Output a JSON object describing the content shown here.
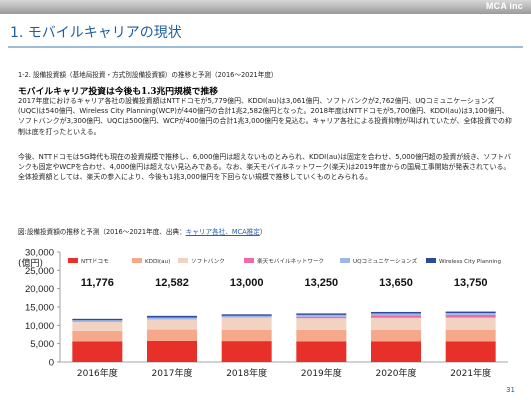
{
  "header": {
    "brand": "MCA inc"
  },
  "slide": {
    "title": "1. モバイルキャリアの現状",
    "subhead": "1-2. 設備投資額（基地局投資・方式別設備投資額）の推移と予測（2016～2021年度）",
    "section_heading": "モバイルキャリア投資は今後も1.3兆円規模で推移",
    "para1": "2017年度におけるキャリア各社の設備投資額はNTTドコモが5,779億円、KDDI(au)は3,061億円、ソフトバンクが2,762億円、UQコミュニケーションズ(UQC)は540億円、Wireless City Planning(WCP)が440億円の合計1兆2,582億円となった。2018年度はNTTドコモが5,700億円、KDDI(au)は3,100億円、ソフトバンクが3,300億円、UQCは500億円、WCPが400億円の合計1兆3,000億円を見込む。キャリア各社による投資抑制が叫ばれていたが、全体投資での抑制は底を打ったといえる。",
    "para2": "今後、NTTドコモは5G時代も現在の投資規模で推移し、6,000億円は超えないものとみられ、KDDI(au)は固定を合わせ、5,000億円超の投資が続き、ソフトバンクも固定やWCPを合わせ、4,000億円は超えない見込みである。なお、楽天モバイルネットワーク(楽天)は2019年度からの国局工事開始が発表されている。全体投資額としては、楽天の参入により、今後も1兆3,000億円を下回らない規模で推移していくものとみられる。",
    "chart_caption": "図:設備投資額の推移と予測（2016～2021年度、出典：",
    "chart_caption_source": "キャリア各社、MCA推定",
    "chart_caption_end": "）",
    "page_number": "31"
  },
  "chart_data": {
    "type": "bar",
    "stacked": true,
    "categories": [
      "2016年度",
      "2017年度",
      "2018年度",
      "2019年度",
      "2020年度",
      "2021年度"
    ],
    "totals": [
      "11,776",
      "12,582",
      "13,000",
      "13,250",
      "13,650",
      "13,750"
    ],
    "ylabel": "(億円)",
    "ylim": [
      0,
      30000
    ],
    "yticks": [
      "0",
      "5,000",
      "10,000",
      "15,000",
      "20,000",
      "25,000",
      "30,000"
    ],
    "grid": false,
    "legend_position": "top",
    "series": [
      {
        "name": "NTTドコモ",
        "color": "#e8302a",
        "values": [
          5600,
          5779,
          5700,
          5600,
          5600,
          5600
        ]
      },
      {
        "name": "KDDI(au)",
        "color": "#f5a98a",
        "values": [
          2900,
          3061,
          3100,
          3150,
          3200,
          3200
        ]
      },
      {
        "name": "ソフトバンク",
        "color": "#f2d3c2",
        "values": [
          2400,
          2762,
          3300,
          3200,
          3250,
          3300
        ]
      },
      {
        "name": "楽天モバイルネットワーク",
        "color": "#f06aa8",
        "values": [
          0,
          0,
          0,
          400,
          700,
          750
        ]
      },
      {
        "name": "UQコミュニケーションズ",
        "color": "#9db8e8",
        "values": [
          500,
          540,
          500,
          500,
          500,
          500
        ]
      },
      {
        "name": "Wireless City Planning",
        "color": "#2c4a9a",
        "values": [
          376,
          440,
          400,
          400,
          400,
          400
        ]
      }
    ]
  }
}
